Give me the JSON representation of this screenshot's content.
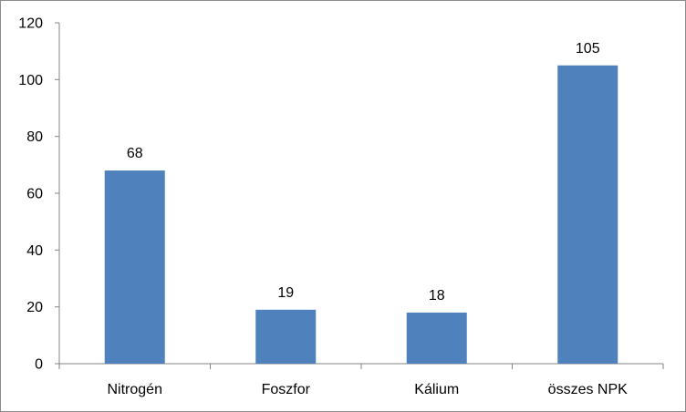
{
  "chart_data": {
    "type": "bar",
    "categories": [
      "Nitrogén",
      "Foszfor",
      "Kálium",
      "összes NPK"
    ],
    "values": [
      68,
      19,
      18,
      105
    ],
    "data_labels": [
      "68",
      "19",
      "18",
      "105"
    ],
    "title": "",
    "xlabel": "",
    "ylabel": "",
    "ylim": [
      0,
      120
    ],
    "yticks": [
      0,
      20,
      40,
      60,
      80,
      100,
      120
    ],
    "grid": false,
    "legend": "none",
    "bar_color": "#4f81bd",
    "axis_color": "#868686"
  }
}
